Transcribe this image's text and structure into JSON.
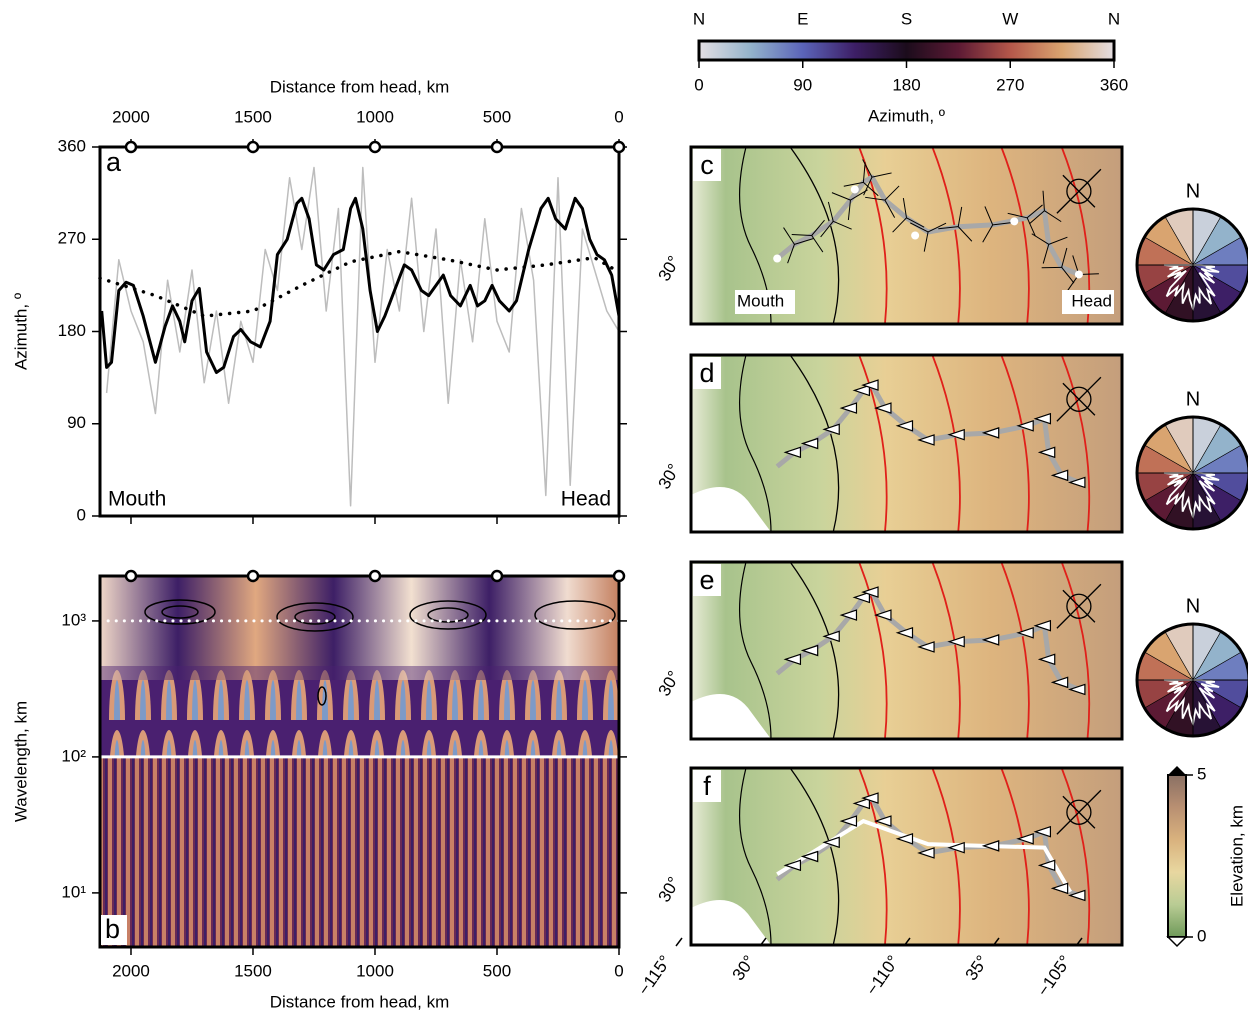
{
  "chart_data": [
    {
      "type": "line",
      "panel_label": "a",
      "x_title": "Distance from head, km",
      "y_title": "Azimuth, º",
      "annotations": [
        "Mouth",
        "Head"
      ],
      "xlim": [
        2127,
        0
      ],
      "xticks": [
        2000,
        1500,
        1000,
        500,
        0
      ],
      "ylim": [
        0,
        360
      ],
      "yticks": [
        0,
        90,
        180,
        270,
        360
      ],
      "series": [
        {
          "color": "#bdbdbd",
          "style": "solid",
          "x": [
            2100,
            2050,
            2000,
            1950,
            1900,
            1850,
            1800,
            1750,
            1700,
            1650,
            1600,
            1550,
            1500,
            1450,
            1400,
            1350,
            1300,
            1250,
            1200,
            1150,
            1100,
            1050,
            1000,
            950,
            900,
            850,
            800,
            750,
            700,
            650,
            600,
            550,
            500,
            450,
            400,
            350,
            300,
            250,
            200,
            150,
            100,
            50,
            0
          ],
          "values": [
            120,
            250,
            200,
            170,
            100,
            230,
            160,
            240,
            130,
            200,
            110,
            190,
            150,
            260,
            220,
            330,
            260,
            340,
            200,
            300,
            10,
            340,
            150,
            260,
            200,
            310,
            180,
            280,
            110,
            250,
            170,
            290,
            190,
            160,
            300,
            230,
            20,
            330,
            30,
            280,
            240,
            200,
            180
          ]
        },
        {
          "color": "#000000",
          "style": "solid",
          "x": [
            2120,
            2100,
            2080,
            2050,
            2020,
            1990,
            1950,
            1900,
            1860,
            1830,
            1800,
            1780,
            1750,
            1720,
            1690,
            1650,
            1620,
            1580,
            1550,
            1510,
            1470,
            1430,
            1400,
            1360,
            1320,
            1300,
            1270,
            1240,
            1210,
            1170,
            1130,
            1100,
            1080,
            1050,
            1020,
            990,
            960,
            920,
            880,
            850,
            810,
            780,
            750,
            720,
            690,
            650,
            610,
            580,
            550,
            520,
            490,
            450,
            420,
            370,
            320,
            290,
            260,
            220,
            180,
            150,
            120,
            90,
            60,
            30,
            0
          ],
          "values": [
            200,
            145,
            150,
            220,
            228,
            225,
            195,
            150,
            185,
            205,
            190,
            170,
            210,
            222,
            160,
            140,
            145,
            175,
            182,
            170,
            165,
            190,
            255,
            270,
            305,
            310,
            290,
            245,
            240,
            255,
            260,
            300,
            310,
            280,
            220,
            180,
            195,
            220,
            245,
            240,
            220,
            215,
            225,
            235,
            215,
            205,
            225,
            205,
            210,
            225,
            210,
            200,
            210,
            260,
            300,
            310,
            290,
            280,
            310,
            300,
            270,
            255,
            250,
            235,
            195
          ]
        },
        {
          "color": "#000000",
          "style": "dotted",
          "x": [
            2127,
            1900,
            1700,
            1500,
            1300,
            1100,
            900,
            700,
            500,
            300,
            100,
            0
          ],
          "values": [
            232,
            215,
            195,
            200,
            225,
            248,
            258,
            250,
            240,
            245,
            252,
            238
          ]
        }
      ]
    },
    {
      "type": "wavelet",
      "panel_label": "b",
      "x_title": "Distance from head, km",
      "y_title": "Wavelength, km",
      "xlim": [
        2127,
        0
      ],
      "xticks": [
        2000,
        1500,
        1000,
        500,
        0
      ],
      "ylim": [
        4,
        2140
      ],
      "log_y": true,
      "yticks": [
        {
          "value": 10,
          "label": "10¹"
        },
        {
          "value": 100,
          "label": "10²"
        },
        {
          "value": 1000,
          "label": "10³"
        }
      ],
      "reference_lines": [
        {
          "value": 1000,
          "color": "#ffffff",
          "style": "dotted"
        },
        {
          "value": 100,
          "color": "#ffffff",
          "style": "solid"
        }
      ]
    }
  ],
  "azimuth_colorbar": {
    "title": "Azimuth, º",
    "directions": [
      "N",
      "E",
      "S",
      "W",
      "N"
    ],
    "ticks": [
      0,
      90,
      180,
      270,
      360
    ],
    "lim": [
      0,
      360
    ],
    "colormap": [
      "#e4dfe3",
      "#93b3cb",
      "#5b64b9",
      "#3d1f66",
      "#1c0c1c",
      "#5c1a34",
      "#b4574a",
      "#d9a470",
      "#e4dfe3"
    ]
  },
  "maps": {
    "panels": [
      "c",
      "d",
      "e",
      "f"
    ],
    "lat_label": "30°",
    "mouth": "Mouth",
    "head": "Head",
    "rose_label": "N",
    "lon_labels": [
      "−115°",
      "30°",
      "−110°",
      "35°",
      "−105°"
    ]
  },
  "elevation_colorbar": {
    "title": "Elevation, km",
    "ticks": [
      0,
      5
    ],
    "lim": [
      0,
      5
    ],
    "colors": [
      "#6f9a5a",
      "#b9cc94",
      "#e8d7a0",
      "#d9b27e",
      "#b99072",
      "#8a7064"
    ]
  }
}
